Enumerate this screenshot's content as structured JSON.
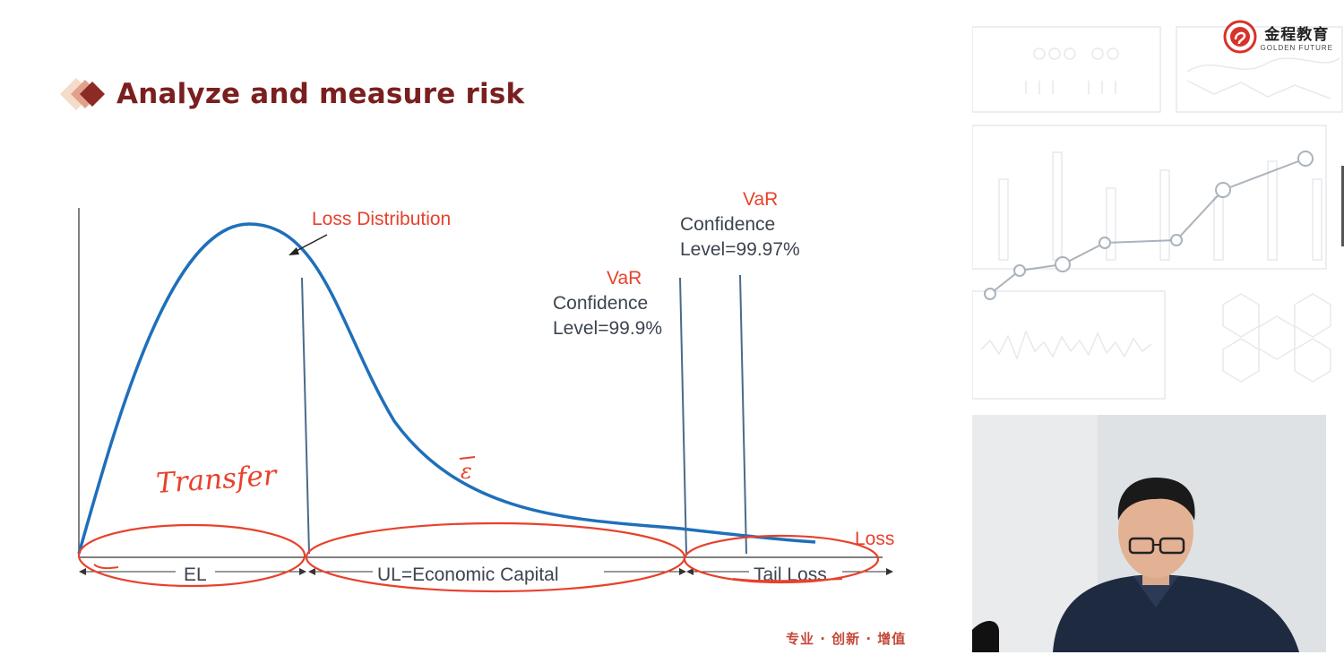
{
  "slide": {
    "title": "Analyze and measure risk",
    "slogan": "专业 · 创新 · 增值"
  },
  "diagram": {
    "curve_label": "Loss Distribution",
    "axis_end_label": "Loss",
    "var1": {
      "heading": "VaR",
      "line1": "Confidence",
      "line2": "Level=99.9%"
    },
    "var2": {
      "heading": "VaR",
      "line1": "Confidence",
      "line2": "Level=99.97%"
    },
    "segments": {
      "el": "EL",
      "ul": "UL=Economic Capital",
      "tail": "Tail Loss"
    },
    "handwriting": {
      "transfer": "Transfer",
      "mark": "ε"
    }
  },
  "brand": {
    "name_cn": "金程教育",
    "name_en": "GOLDEN FUTURE"
  },
  "colors": {
    "title": "#7a1f1f",
    "curve": "#1f6fba",
    "annotation_red": "#e8412c",
    "text_dark": "#3c4450"
  }
}
